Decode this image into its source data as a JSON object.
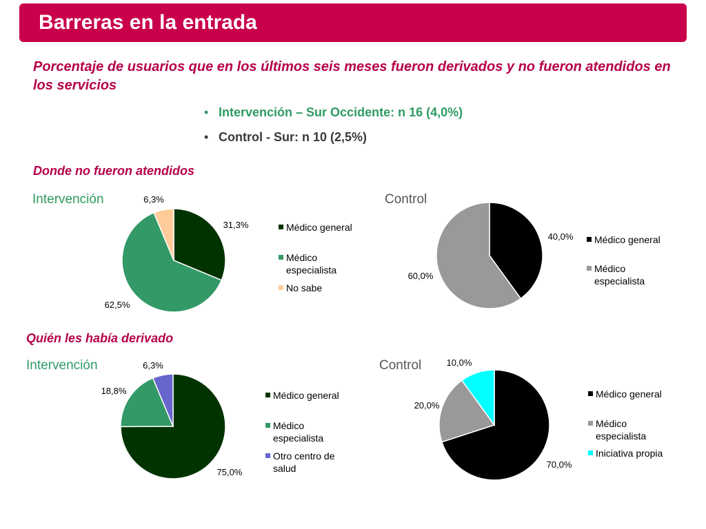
{
  "header": {
    "title": "Barreras en la entrada"
  },
  "subtitle": "Porcentaje de usuarios que en los últimos seis meses fueron derivados y no fueron atendidos en los servicios",
  "bullets": [
    {
      "dot": "•",
      "text": "Intervención – Sur Occidente: n 16 (4,0%)"
    },
    {
      "dot": "•",
      "text": "Control - Sur: n 10 (2,5%)"
    }
  ],
  "sections": {
    "where": "Donde no fueron atendidos",
    "who": "Quién les había derivado"
  },
  "colors": {
    "title_bar": "#c9004b",
    "accent_text": "#b5004a",
    "dark_green": "#003300",
    "medium_green": "#339966",
    "peach": "#ffcc99",
    "black": "#000000",
    "gray": "#999999",
    "periwinkle": "#6666cc",
    "cyan": "#00ffff"
  },
  "chart_data": [
    {
      "type": "pie",
      "title": "Intervención",
      "categories": [
        "Médico general",
        "Médico especialista",
        "No sabe"
      ],
      "values": [
        31.3,
        62.5,
        6.3
      ],
      "labels": [
        "31,3%",
        "62,5%",
        "6,3%"
      ],
      "colors": [
        "#003300",
        "#339966",
        "#ffcc99"
      ],
      "legend": "right"
    },
    {
      "type": "pie",
      "title": "Control",
      "categories": [
        "Médico general",
        "Médico especialista"
      ],
      "values": [
        40.0,
        60.0
      ],
      "labels": [
        "40,0%",
        "60,0%"
      ],
      "colors": [
        "#000000",
        "#999999"
      ],
      "legend": "right"
    },
    {
      "type": "pie",
      "title": "Intervención",
      "categories": [
        "Médico general",
        "Médico especialista",
        "Otro centro de salud"
      ],
      "values": [
        75.0,
        18.8,
        6.3
      ],
      "labels": [
        "75,0%",
        "18,8%",
        "6,3%"
      ],
      "colors": [
        "#003300",
        "#339966",
        "#6666cc"
      ],
      "legend": "right"
    },
    {
      "type": "pie",
      "title": "Control",
      "categories": [
        "Médico general",
        "Médico especialista",
        "Iniciativa propia"
      ],
      "values": [
        70.0,
        20.0,
        10.0
      ],
      "labels": [
        "70,0%",
        "20,0%",
        "10,0%"
      ],
      "colors": [
        "#000000",
        "#999999",
        "#00ffff"
      ],
      "legend": "right"
    }
  ]
}
